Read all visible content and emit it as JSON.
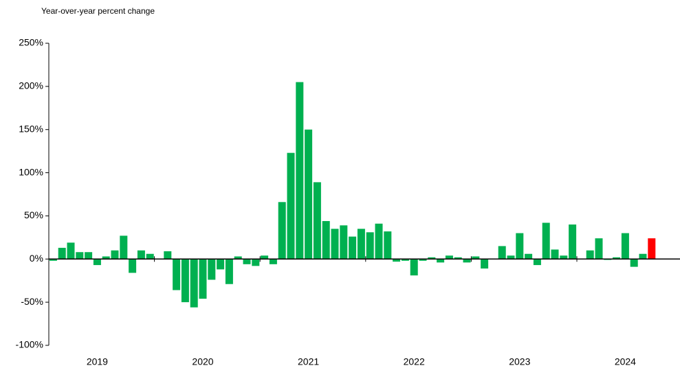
{
  "chart_data": {
    "type": "bar",
    "y_axis_label": "Year-over-year percent change",
    "categories": [
      null,
      null,
      null,
      null,
      null,
      "2019",
      null,
      null,
      null,
      null,
      null,
      null,
      null,
      null,
      null,
      null,
      null,
      "2020",
      null,
      null,
      null,
      null,
      null,
      null,
      null,
      null,
      null,
      null,
      null,
      "2021",
      null,
      null,
      null,
      null,
      null,
      null,
      null,
      null,
      null,
      null,
      null,
      "2022",
      null,
      null,
      null,
      null,
      null,
      null,
      null,
      null,
      null,
      null,
      null,
      "2023",
      null,
      null,
      null,
      null,
      null,
      null,
      null,
      null,
      null,
      null,
      null,
      "2024",
      null,
      null,
      null
    ],
    "values": [
      -2,
      13,
      19,
      8,
      8,
      -7,
      3,
      10,
      27,
      -16,
      10,
      6,
      0,
      9,
      -36,
      -50,
      -56,
      -46,
      -24,
      -12,
      -29,
      3,
      -6,
      -8,
      4,
      -6,
      66,
      123,
      205,
      150,
      89,
      44,
      35,
      39,
      26,
      35,
      31,
      41,
      32,
      -3,
      -2,
      -19,
      -2,
      2,
      -4,
      4,
      2,
      -4,
      3,
      -11,
      0,
      15,
      4,
      30,
      6,
      -7,
      42,
      11,
      4,
      40,
      0,
      10,
      24,
      -1,
      2,
      30,
      -9,
      6,
      24
    ],
    "color": "#00b050",
    "highlight": {
      "index": 68,
      "color": "#ff0000"
    },
    "ylim": [
      -100,
      250
    ],
    "yticks": [
      {
        "value": -100,
        "label": "-100%"
      },
      {
        "value": -50,
        "label": "-50%"
      },
      {
        "value": 0,
        "label": "0%"
      },
      {
        "value": 50,
        "label": "50%"
      },
      {
        "value": 100,
        "label": "100%"
      },
      {
        "value": 150,
        "label": "150%"
      },
      {
        "value": 200,
        "label": "200%"
      },
      {
        "value": 250,
        "label": "250%"
      }
    ],
    "grid": false
  }
}
